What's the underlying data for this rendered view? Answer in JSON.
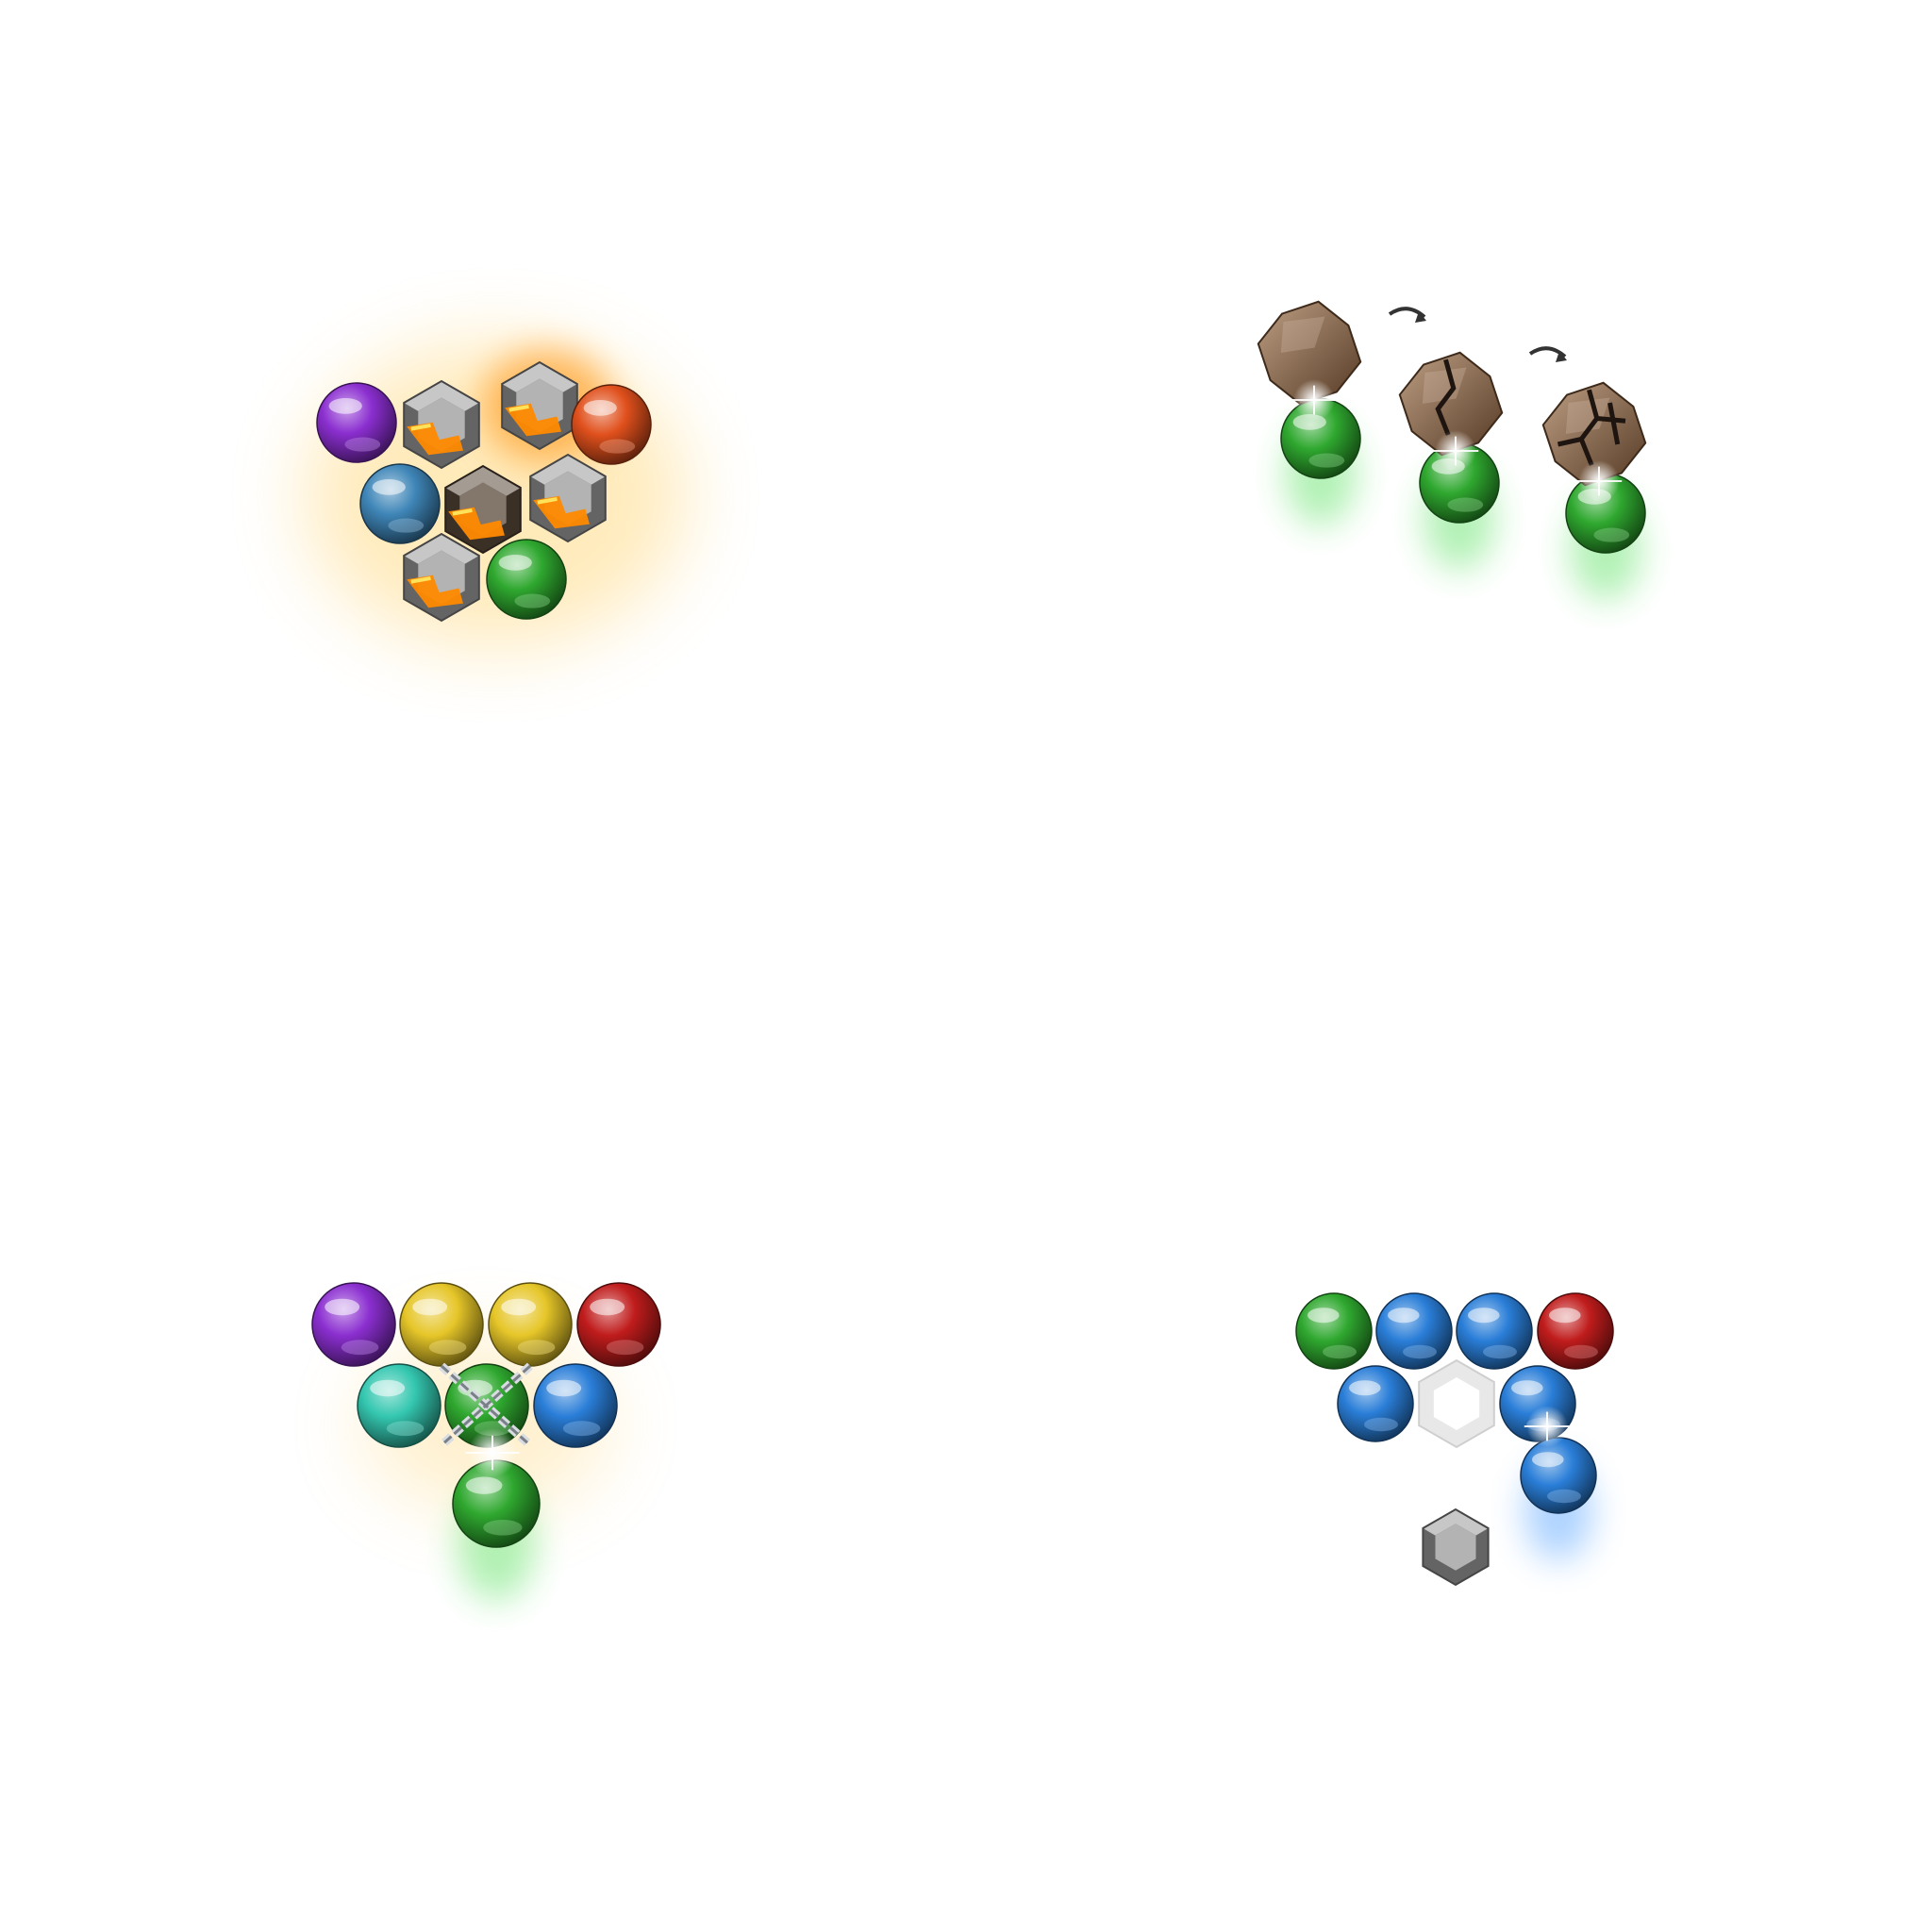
{
  "colors": {
    "background": "#ffffff",
    "purple": "#8b2fd0",
    "orange_red": "#e0501c",
    "steel_blue": "#3f86b8",
    "green": "#2fa82f",
    "yellow": "#e6c629",
    "red": "#c01c1c",
    "teal": "#34c7b0",
    "blue": "#2a7ed8",
    "lava": "#ff8a00",
    "stone": "#9a9a9a",
    "rock": "#9a6a42",
    "glow_green": "#53e05a",
    "glow_yellow": "#ffc53d",
    "glow_blue": "#4a9cff",
    "ice": "#e8e8e8"
  },
  "panels": [
    {
      "name": "lava-stone-cluster",
      "bubbles": [
        "purple",
        "orange_red",
        "steel_blue",
        "green"
      ],
      "blocks": [
        "lava-stone-block",
        "lava-stone-block",
        "molten-lava-block",
        "lava-stone-block",
        "lava-stone-block"
      ],
      "effect": "fire-glow"
    },
    {
      "name": "rock-breaking-sequence",
      "stages": [
        "intact-rock",
        "cracked-rock",
        "shattered-rock"
      ],
      "hit_bubble": "green",
      "arrow_icon": "curved-arrow-icon"
    },
    {
      "name": "chained-bubble-cluster",
      "bubbles": [
        "purple",
        "yellow",
        "yellow",
        "red",
        "teal",
        "green",
        "blue"
      ],
      "locked_bubble": "green",
      "lock_icon": "chain-cross-icon",
      "shot_bubble": "green"
    },
    {
      "name": "stone-block-cluster",
      "bubbles": [
        "green",
        "blue",
        "blue",
        "red",
        "blue",
        "blue"
      ],
      "block": "white-stone-block",
      "shot_bubble": "blue",
      "result_block": "gray-stone-block"
    }
  ]
}
